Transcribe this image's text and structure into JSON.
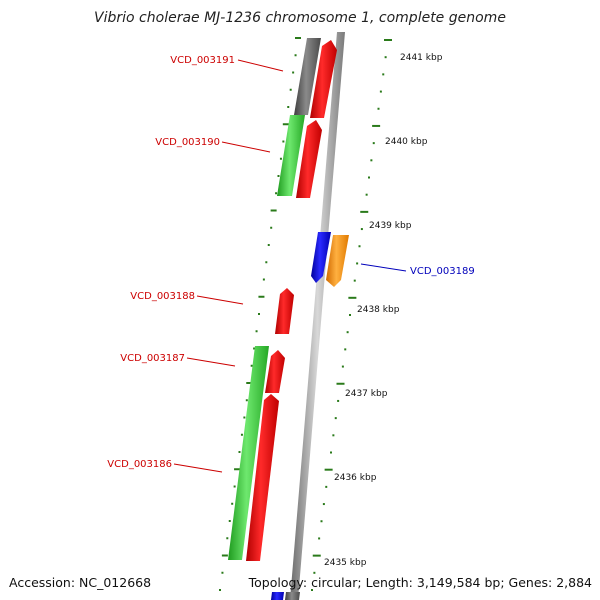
{
  "title": "Vibrio cholerae MJ-1236 chromosome 1, complete genome",
  "footer": {
    "accession": "Accession: NC_012668",
    "summary": "Topology: circular; Length: 3,149,584 bp; Genes: 2,884"
  },
  "colors": {
    "tick": "#2a7a1a",
    "forward_label": "#cc0000",
    "reverse_label": "#0000bb",
    "backbone": "#9a9a9a"
  },
  "scale_labels": [
    "2441 kbp",
    "2440 kbp",
    "2439 kbp",
    "2438 kbp",
    "2437 kbp",
    "2436 kbp",
    "2435 kbp"
  ],
  "gene_labels": [
    {
      "id": "VCD_003191",
      "side": "left"
    },
    {
      "id": "VCD_003190",
      "side": "left"
    },
    {
      "id": "VCD_003189",
      "side": "right"
    },
    {
      "id": "VCD_003188",
      "side": "left"
    },
    {
      "id": "VCD_003187",
      "side": "left"
    },
    {
      "id": "VCD_003186",
      "side": "left"
    }
  ]
}
